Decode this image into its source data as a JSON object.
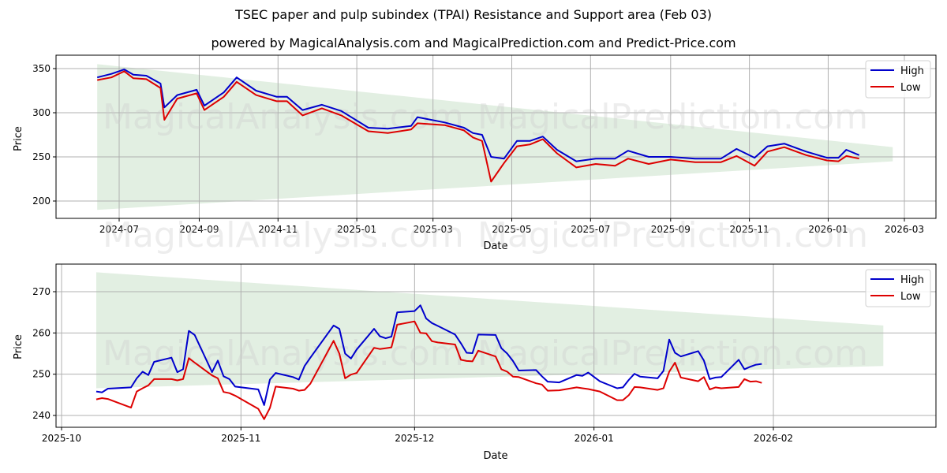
{
  "title": "TSEC paper and pulp subindex (TPAI) Resistance and Support area (Feb 03)",
  "subtitle": "powered by MagicalAnalysis.com and MagicalPrediction.com and Predict-Price.com",
  "watermarks": [
    "MagicalAnalysis.com",
    "MagicalPrediction.com"
  ],
  "colors": {
    "high": "#0000cc",
    "low": "#dd0000",
    "band": "#d8ead8",
    "grid": "#b0b0b0"
  },
  "chart_data": [
    {
      "type": "line",
      "title": "Full range",
      "xlabel": "Date",
      "ylabel": "Price",
      "ylim": [
        180,
        365
      ],
      "yticks": [
        200,
        250,
        300,
        350
      ],
      "xticks": [
        "2024-07",
        "2024-09",
        "2024-11",
        "2025-01",
        "2025-03",
        "2025-05",
        "2025-07",
        "2025-09",
        "2025-11",
        "2026-01",
        "2026-03"
      ],
      "grid": true,
      "legend": {
        "position": "upper right",
        "entries": [
          "High",
          "Low"
        ]
      },
      "band": {
        "label": "Resistance and Support area",
        "x_start": "2024-06-14",
        "x_end": "2026-02-20",
        "upper": [
          355,
          261
        ],
        "lower": [
          190,
          245
        ]
      },
      "series": [
        {
          "name": "High",
          "x": [
            "2024-06-14",
            "2024-06-25",
            "2024-07-05",
            "2024-07-12",
            "2024-07-22",
            "2024-08-02",
            "2024-08-05",
            "2024-08-15",
            "2024-08-30",
            "2024-09-05",
            "2024-09-20",
            "2024-09-30",
            "2024-10-15",
            "2024-10-31",
            "2024-11-08",
            "2024-11-20",
            "2024-12-05",
            "2024-12-20",
            "2025-01-10",
            "2025-01-25",
            "2025-02-12",
            "2025-02-17",
            "2025-03-10",
            "2025-03-25",
            "2025-04-01",
            "2025-04-08",
            "2025-04-15",
            "2025-04-25",
            "2025-05-05",
            "2025-05-15",
            "2025-05-25",
            "2025-06-05",
            "2025-06-20",
            "2025-07-05",
            "2025-07-20",
            "2025-07-30",
            "2025-08-15",
            "2025-09-01",
            "2025-09-20",
            "2025-10-10",
            "2025-10-22",
            "2025-11-05",
            "2025-11-15",
            "2025-11-28",
            "2025-12-15",
            "2025-12-31",
            "2026-01-09",
            "2026-01-15",
            "2026-01-25"
          ],
          "values": [
            340,
            344,
            349,
            343,
            342,
            333,
            306,
            320,
            326,
            308,
            323,
            340,
            325,
            318,
            318,
            303,
            309,
            302,
            283,
            282,
            285,
            295,
            289,
            283,
            277,
            275,
            250,
            248,
            268,
            268,
            273,
            258,
            245,
            248,
            248,
            257,
            250,
            250,
            248,
            248,
            259,
            249,
            262,
            265,
            256,
            249,
            249,
            258,
            252
          ]
        },
        {
          "name": "Low",
          "x": [
            "2024-06-14",
            "2024-06-25",
            "2024-07-05",
            "2024-07-12",
            "2024-07-22",
            "2024-08-02",
            "2024-08-05",
            "2024-08-15",
            "2024-08-30",
            "2024-09-05",
            "2024-09-20",
            "2024-09-30",
            "2024-10-15",
            "2024-10-31",
            "2024-11-08",
            "2024-11-20",
            "2024-12-05",
            "2024-12-20",
            "2025-01-10",
            "2025-01-25",
            "2025-02-12",
            "2025-02-17",
            "2025-03-10",
            "2025-03-25",
            "2025-04-01",
            "2025-04-08",
            "2025-04-15",
            "2025-04-25",
            "2025-05-05",
            "2025-05-15",
            "2025-05-25",
            "2025-06-05",
            "2025-06-20",
            "2025-07-05",
            "2025-07-20",
            "2025-07-30",
            "2025-08-15",
            "2025-09-01",
            "2025-09-20",
            "2025-10-10",
            "2025-10-22",
            "2025-11-05",
            "2025-11-15",
            "2025-11-28",
            "2025-12-15",
            "2025-12-31",
            "2026-01-09",
            "2026-01-15",
            "2026-01-25"
          ],
          "values": [
            337,
            340,
            347,
            339,
            338,
            328,
            292,
            316,
            322,
            303,
            318,
            335,
            320,
            313,
            313,
            297,
            305,
            297,
            279,
            277,
            281,
            288,
            286,
            280,
            272,
            268,
            222,
            243,
            262,
            264,
            270,
            254,
            238,
            242,
            240,
            248,
            242,
            247,
            244,
            244,
            251,
            240,
            256,
            261,
            252,
            246,
            245,
            251,
            248
          ]
        }
      ]
    },
    {
      "type": "line",
      "title": "Zoomed recent range",
      "xlabel": "Date",
      "ylabel": "Price",
      "ylim": [
        237,
        277
      ],
      "yticks": [
        240,
        250,
        260,
        270
      ],
      "xticks": [
        "2025-10",
        "2025-11",
        "2025-12",
        "2026-01",
        "2026-02"
      ],
      "grid": true,
      "legend": {
        "position": "upper right",
        "entries": [
          "High",
          "Low"
        ]
      },
      "band": {
        "label": "Resistance and Support area",
        "x_start": "2025-10-07",
        "x_end": "2026-02-20",
        "upper": [
          274.7,
          261.8
        ],
        "lower": [
          246.6,
          252.0
        ]
      },
      "series": [
        {
          "name": "High",
          "x": [
            "2025-10-07",
            "2025-10-08",
            "2025-10-09",
            "2025-10-13",
            "2025-10-14",
            "2025-10-15",
            "2025-10-16",
            "2025-10-17",
            "2025-10-20",
            "2025-10-21",
            "2025-10-22",
            "2025-10-23",
            "2025-10-24",
            "2025-10-27",
            "2025-10-28",
            "2025-10-29",
            "2025-10-30",
            "2025-10-31",
            "2025-11-04",
            "2025-11-05",
            "2025-11-06",
            "2025-11-07",
            "2025-11-10",
            "2025-11-11",
            "2025-11-12",
            "2025-11-13",
            "2025-11-17",
            "2025-11-18",
            "2025-11-19",
            "2025-11-20",
            "2025-11-21",
            "2025-11-24",
            "2025-11-25",
            "2025-11-26",
            "2025-11-27",
            "2025-11-28",
            "2025-12-01",
            "2025-12-02",
            "2025-12-03",
            "2025-12-04",
            "2025-12-05",
            "2025-12-08",
            "2025-12-09",
            "2025-12-10",
            "2025-12-11",
            "2025-12-12",
            "2025-12-15",
            "2025-12-16",
            "2025-12-17",
            "2025-12-18",
            "2025-12-19",
            "2025-12-22",
            "2025-12-23",
            "2025-12-24",
            "2025-12-26",
            "2025-12-29",
            "2025-12-30",
            "2025-12-31",
            "2026-01-02",
            "2026-01-05",
            "2026-01-06",
            "2026-01-07",
            "2026-01-08",
            "2026-01-09",
            "2026-01-12",
            "2026-01-13",
            "2026-01-14",
            "2026-01-15",
            "2026-01-16",
            "2026-01-19",
            "2026-01-20",
            "2026-01-21",
            "2026-01-22",
            "2026-01-23",
            "2026-01-26",
            "2026-01-27",
            "2026-01-28",
            "2026-01-29",
            "2026-01-30"
          ],
          "values": [
            245.8,
            245.6,
            246.5,
            246.8,
            249.0,
            250.6,
            249.8,
            253.0,
            254.0,
            250.5,
            251.2,
            260.5,
            259.5,
            250.5,
            253.3,
            249.5,
            248.8,
            247.0,
            246.3,
            242.5,
            248.7,
            250.3,
            249.3,
            248.7,
            252.0,
            254.0,
            261.8,
            261.0,
            255.0,
            253.8,
            256.0,
            261.0,
            259.2,
            258.7,
            259.1,
            265.0,
            265.3,
            266.7,
            263.5,
            262.4,
            261.7,
            259.6,
            257.5,
            255.2,
            255.1,
            259.6,
            259.5,
            256.3,
            255.0,
            253.2,
            250.9,
            251.0,
            249.5,
            248.2,
            248.0,
            249.8,
            249.6,
            250.4,
            248.3,
            246.6,
            246.8,
            248.6,
            250.1,
            249.4,
            249.0,
            250.8,
            258.4,
            255.2,
            254.3,
            255.6,
            253.3,
            248.8,
            249.2,
            249.3,
            253.5,
            251.2,
            251.8,
            252.3,
            252.5
          ]
        },
        {
          "name": "Low",
          "x": [
            "2025-10-07",
            "2025-10-08",
            "2025-10-09",
            "2025-10-13",
            "2025-10-14",
            "2025-10-15",
            "2025-10-16",
            "2025-10-17",
            "2025-10-20",
            "2025-10-21",
            "2025-10-22",
            "2025-10-23",
            "2025-10-24",
            "2025-10-27",
            "2025-10-28",
            "2025-10-29",
            "2025-10-30",
            "2025-10-31",
            "2025-11-04",
            "2025-11-05",
            "2025-11-06",
            "2025-11-07",
            "2025-11-10",
            "2025-11-11",
            "2025-11-12",
            "2025-11-13",
            "2025-11-17",
            "2025-11-18",
            "2025-11-19",
            "2025-11-20",
            "2025-11-21",
            "2025-11-24",
            "2025-11-25",
            "2025-11-26",
            "2025-11-27",
            "2025-11-28",
            "2025-12-01",
            "2025-12-02",
            "2025-12-03",
            "2025-12-04",
            "2025-12-05",
            "2025-12-08",
            "2025-12-09",
            "2025-12-10",
            "2025-12-11",
            "2025-12-12",
            "2025-12-15",
            "2025-12-16",
            "2025-12-17",
            "2025-12-18",
            "2025-12-19",
            "2025-12-22",
            "2025-12-23",
            "2025-12-24",
            "2025-12-26",
            "2025-12-29",
            "2025-12-30",
            "2025-12-31",
            "2026-01-02",
            "2026-01-05",
            "2026-01-06",
            "2026-01-07",
            "2026-01-08",
            "2026-01-09",
            "2026-01-12",
            "2026-01-13",
            "2026-01-14",
            "2026-01-15",
            "2026-01-16",
            "2026-01-19",
            "2026-01-20",
            "2026-01-21",
            "2026-01-22",
            "2026-01-23",
            "2026-01-26",
            "2026-01-27",
            "2026-01-28",
            "2026-01-29",
            "2026-01-30"
          ],
          "values": [
            243.9,
            244.2,
            244.0,
            241.9,
            245.8,
            246.6,
            247.3,
            248.8,
            248.8,
            248.5,
            248.8,
            253.9,
            252.8,
            249.7,
            249.0,
            245.7,
            245.4,
            244.8,
            241.6,
            239.1,
            241.8,
            247.0,
            246.5,
            246.0,
            246.2,
            247.7,
            258.1,
            255.0,
            249.0,
            249.9,
            250.3,
            256.4,
            256.1,
            256.3,
            256.5,
            262.0,
            262.8,
            260.0,
            259.9,
            258.0,
            257.7,
            257.2,
            253.5,
            253.2,
            253.1,
            255.7,
            254.3,
            251.2,
            250.6,
            249.4,
            249.3,
            247.8,
            247.5,
            246.0,
            246.1,
            246.8,
            246.6,
            246.4,
            245.8,
            243.7,
            243.7,
            244.9,
            246.9,
            246.8,
            246.2,
            246.6,
            250.6,
            252.8,
            249.2,
            248.3,
            249.3,
            246.3,
            246.8,
            246.6,
            246.9,
            248.8,
            248.2,
            248.3,
            247.9
          ]
        }
      ]
    }
  ]
}
